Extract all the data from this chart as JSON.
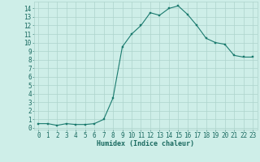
{
  "x": [
    0,
    1,
    2,
    3,
    4,
    5,
    6,
    7,
    8,
    9,
    10,
    11,
    12,
    13,
    14,
    15,
    16,
    17,
    18,
    19,
    20,
    21,
    22,
    23
  ],
  "y": [
    0.5,
    0.5,
    0.3,
    0.5,
    0.4,
    0.4,
    0.5,
    1.0,
    3.5,
    9.5,
    11.0,
    12.0,
    13.5,
    13.2,
    14.0,
    14.3,
    13.3,
    12.0,
    10.5,
    10.0,
    9.8,
    8.5,
    8.3,
    8.3
  ],
  "xlabel": "Humidex (Indice chaleur)",
  "ylabel_ticks": [
    0,
    1,
    2,
    3,
    4,
    5,
    6,
    7,
    8,
    9,
    10,
    11,
    12,
    13,
    14
  ],
  "xlim": [
    -0.5,
    23.5
  ],
  "ylim": [
    -0.2,
    14.8
  ],
  "line_color": "#1a7a6e",
  "marker_color": "#1a7a6e",
  "bg_color": "#ceeee8",
  "grid_color": "#aed4cc",
  "tick_label_color": "#1a6a60",
  "xlabel_color": "#1a6a60",
  "font_size": 5.5
}
